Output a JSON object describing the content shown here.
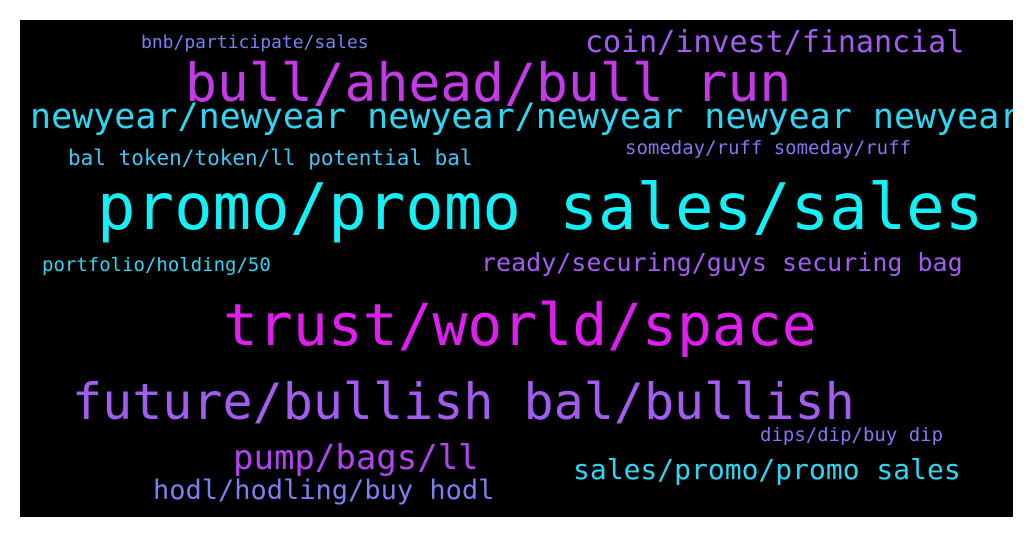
{
  "words": [
    {
      "text": "bnb/participate/sales",
      "color": "#7b7ff0"
    },
    {
      "text": "coin/invest/financial",
      "color": "#a35cf0"
    },
    {
      "text": "bull/ahead/bull run",
      "color": "#c43ae8"
    },
    {
      "text": "newyear/newyear newyear/newyear newyear newyear",
      "color": "#2fd6f2"
    },
    {
      "text": "bal token/token/ll potential bal",
      "color": "#40c6f2"
    },
    {
      "text": "someday/ruff someday/ruff",
      "color": "#8a72f2"
    },
    {
      "text": "promo/promo sales/sales",
      "color": "#14f0f6"
    },
    {
      "text": "portfolio/holding/50",
      "color": "#2fd6f2"
    },
    {
      "text": "ready/securing/guys securing bag",
      "color": "#a35cf0"
    },
    {
      "text": "trust/world/space",
      "color": "#e01ef0"
    },
    {
      "text": "future/bullish bal/bullish",
      "color": "#a35cf0"
    },
    {
      "text": "dips/dip/buy dip",
      "color": "#8a72f2"
    },
    {
      "text": "pump/bags/ll",
      "color": "#b045f0"
    },
    {
      "text": "sales/promo/promo sales",
      "color": "#2fd6f2"
    },
    {
      "text": "hodl/hodling/buy hodl",
      "color": "#7b7ff0"
    }
  ]
}
